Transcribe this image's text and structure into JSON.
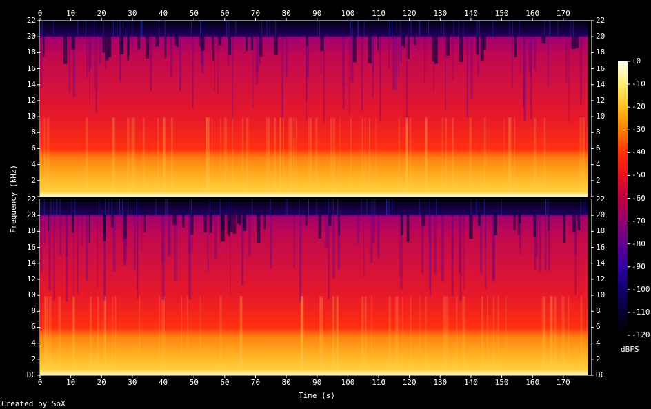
{
  "chart_data": {
    "type": "heatmap",
    "title": "",
    "xlabel": "Time (s)",
    "ylabel": "Frequency (kHz)",
    "xlim": [
      0,
      179
    ],
    "ylim": [
      0,
      22
    ],
    "x_ticks": [
      "0",
      "10",
      "20",
      "30",
      "40",
      "50",
      "60",
      "70",
      "80",
      "90",
      "100",
      "110",
      "120",
      "130",
      "140",
      "150",
      "160",
      "170"
    ],
    "x_tick_values": [
      0,
      10,
      20,
      30,
      40,
      50,
      60,
      70,
      80,
      90,
      100,
      110,
      120,
      130,
      140,
      150,
      160,
      170
    ],
    "y_ticks": [
      "DC",
      "2",
      "4",
      "6",
      "8",
      "10",
      "12",
      "14",
      "16",
      "18",
      "20",
      "22"
    ],
    "y_tick_values": [
      0,
      2,
      4,
      6,
      8,
      10,
      12,
      14,
      16,
      18,
      20,
      22
    ],
    "channels": 2,
    "colorbar": {
      "label": "dBFS",
      "ticks": [
        "+0",
        "-10",
        "-20",
        "-30",
        "-40",
        "-50",
        "-60",
        "-70",
        "-80",
        "-90",
        "-100",
        "-110",
        "-120"
      ],
      "tick_values": [
        0,
        -10,
        -20,
        -30,
        -40,
        -50,
        -60,
        -70,
        -80,
        -90,
        -100,
        -110,
        -120
      ],
      "colors": [
        "#fffff0",
        "#fff070",
        "#ffc020",
        "#ff8000",
        "#ff3000",
        "#e81020",
        "#c00040",
        "#900070",
        "#600090",
        "#3000a0",
        "#100070",
        "#050030",
        "#000000"
      ]
    },
    "audio_duration_s": 178,
    "cutoff_khz": 20
  },
  "footer": {
    "credit": "Created by SoX"
  }
}
